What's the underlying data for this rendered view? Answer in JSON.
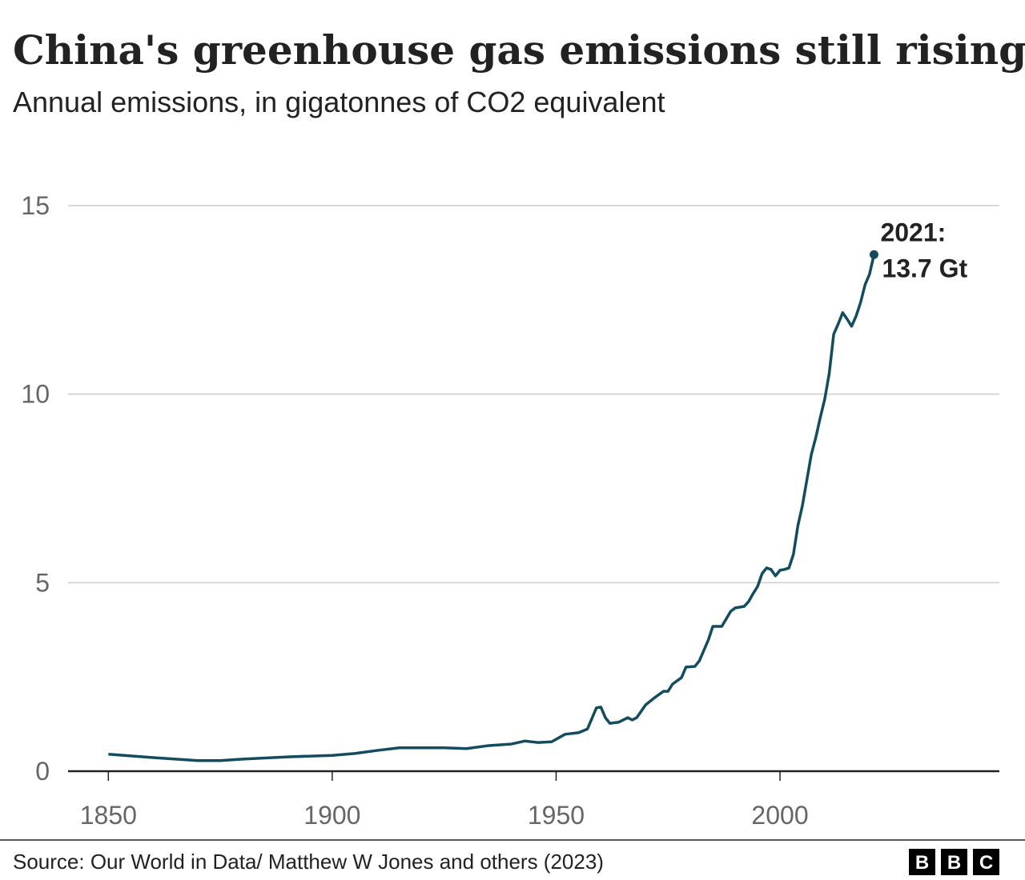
{
  "chart_data": {
    "type": "line",
    "title": "China's greenhouse gas emissions still rising",
    "subtitle": "Annual emissions, in gigatonnes of CO2 equivalent",
    "x": [
      1850,
      1860,
      1870,
      1875,
      1880,
      1890,
      1900,
      1905,
      1910,
      1915,
      1920,
      1925,
      1930,
      1935,
      1940,
      1943,
      1946,
      1949,
      1952,
      1955,
      1957,
      1959,
      1960,
      1961,
      1962,
      1964,
      1966,
      1967,
      1968,
      1970,
      1972,
      1974,
      1975,
      1976,
      1978,
      1979,
      1981,
      1982,
      1984,
      1985,
      1987,
      1989,
      1990,
      1992,
      1993,
      1994,
      1995,
      1996,
      1997,
      1998,
      1999,
      2000,
      2001,
      2002,
      2003,
      2004,
      2005,
      2006,
      2007,
      2008,
      2009,
      2010,
      2011,
      2012,
      2013,
      2014,
      2015,
      2016,
      2017,
      2018,
      2019,
      2020,
      2021
    ],
    "values": [
      0.45,
      0.36,
      0.28,
      0.28,
      0.32,
      0.38,
      0.42,
      0.47,
      0.55,
      0.62,
      0.62,
      0.62,
      0.6,
      0.68,
      0.72,
      0.8,
      0.76,
      0.78,
      0.98,
      1.02,
      1.12,
      1.68,
      1.7,
      1.42,
      1.27,
      1.3,
      1.42,
      1.36,
      1.42,
      1.76,
      1.95,
      2.12,
      2.12,
      2.31,
      2.48,
      2.76,
      2.78,
      2.93,
      3.48,
      3.84,
      3.84,
      4.24,
      4.33,
      4.37,
      4.5,
      4.71,
      4.9,
      5.24,
      5.39,
      5.35,
      5.18,
      5.33,
      5.35,
      5.39,
      5.75,
      6.51,
      7.04,
      7.72,
      8.4,
      8.85,
      9.38,
      9.87,
      10.55,
      11.59,
      11.86,
      12.16,
      11.99,
      11.8,
      12.07,
      12.43,
      12.9,
      13.18,
      13.7
    ],
    "color": "#134b5f",
    "xlim": [
      1841,
      2049
    ],
    "xticks": [
      1850,
      1900,
      1950,
      2000
    ],
    "ylim": [
      0,
      15
    ],
    "yticks": [
      0,
      5,
      10,
      15
    ],
    "grid": true,
    "annotation": [
      "2021:",
      "13.7 Gt"
    ],
    "source": "Source: Our World in Data/ Matthew W Jones and others (2023)",
    "logo": [
      "B",
      "B",
      "C"
    ]
  }
}
